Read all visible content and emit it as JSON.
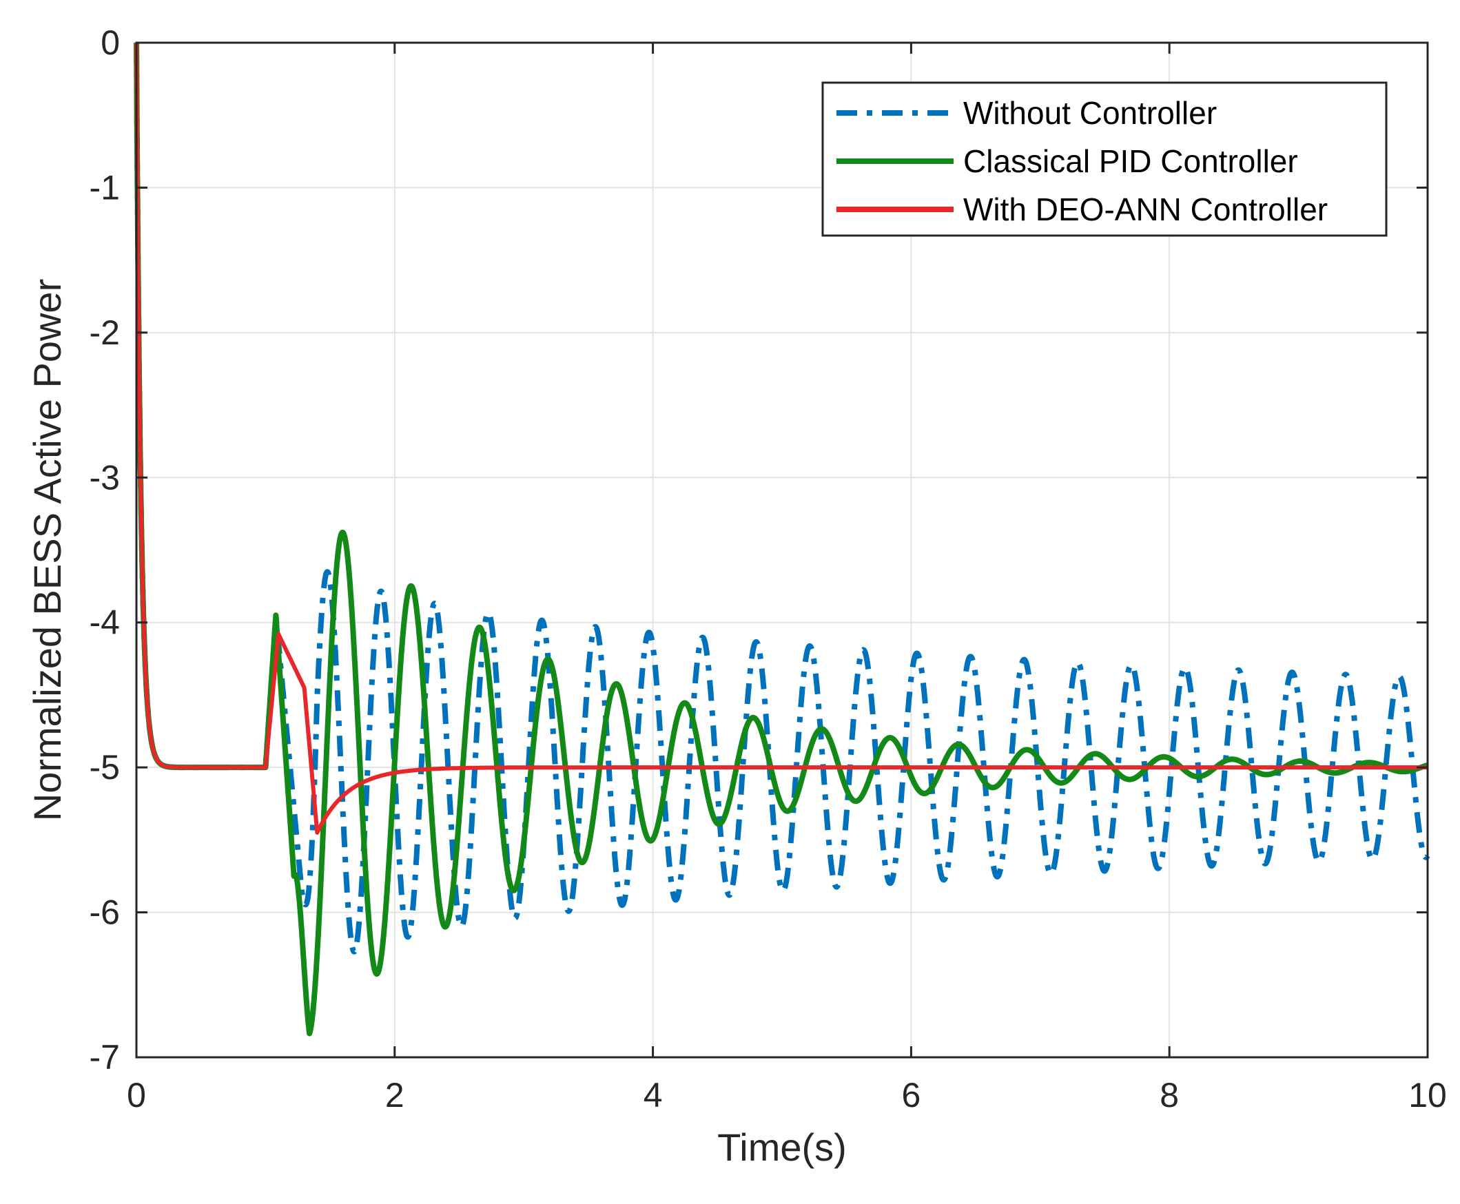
{
  "chart_data": {
    "type": "line",
    "title": "",
    "xlabel": "Time(s)",
    "ylabel": "Normalized BESS Active Power",
    "xlim": [
      0,
      10
    ],
    "ylim": [
      -7,
      0
    ],
    "xticks": [
      0,
      2,
      4,
      6,
      8,
      10
    ],
    "xtick_labels": [
      "0",
      "2",
      "4",
      "6",
      "8",
      "10"
    ],
    "yticks": [
      0,
      -1,
      -2,
      -3,
      -4,
      -5,
      -6,
      -7
    ],
    "ytick_labels": [
      "0",
      "-1",
      "-2",
      "-3",
      "-4",
      "-5",
      "-6",
      "-7"
    ],
    "grid": true,
    "legend_position": "top-right",
    "series": [
      {
        "name": "Without Controller",
        "color": "#0072BD",
        "style": "dashdot",
        "model": {
          "step": {
            "start": 1.0,
            "peak": -3.95,
            "down_end": 1.28,
            "trough": -5.85
          },
          "osc": {
            "start": 1.28,
            "amp0": 1.55,
            "amp_end": 0.62,
            "period": 0.415,
            "phase_t": 1.48
          }
        }
      },
      {
        "name": "Classical PID Controller",
        "color": "#138A17",
        "style": "solid",
        "model": {
          "step": {
            "start": 1.0,
            "peak": -3.95,
            "down_end": 1.22,
            "trough": -5.75
          },
          "osc": {
            "start": 1.22,
            "amp0": 1.95,
            "tau": 2.05,
            "period": 0.53,
            "phase_t": 1.6
          }
        }
      },
      {
        "name": "With DEO-ANN Controller",
        "color": "#E8272B",
        "style": "solid",
        "model": {
          "points": [
            [
              1.0,
              -5.0
            ],
            [
              1.1,
              -4.08
            ],
            [
              1.3,
              -4.45
            ],
            [
              1.4,
              -5.45
            ]
          ],
          "recover_tau": 0.24
        }
      }
    ],
    "initial_transient": {
      "start": 0.0,
      "end_value": -5.0,
      "tau": 0.035
    }
  }
}
